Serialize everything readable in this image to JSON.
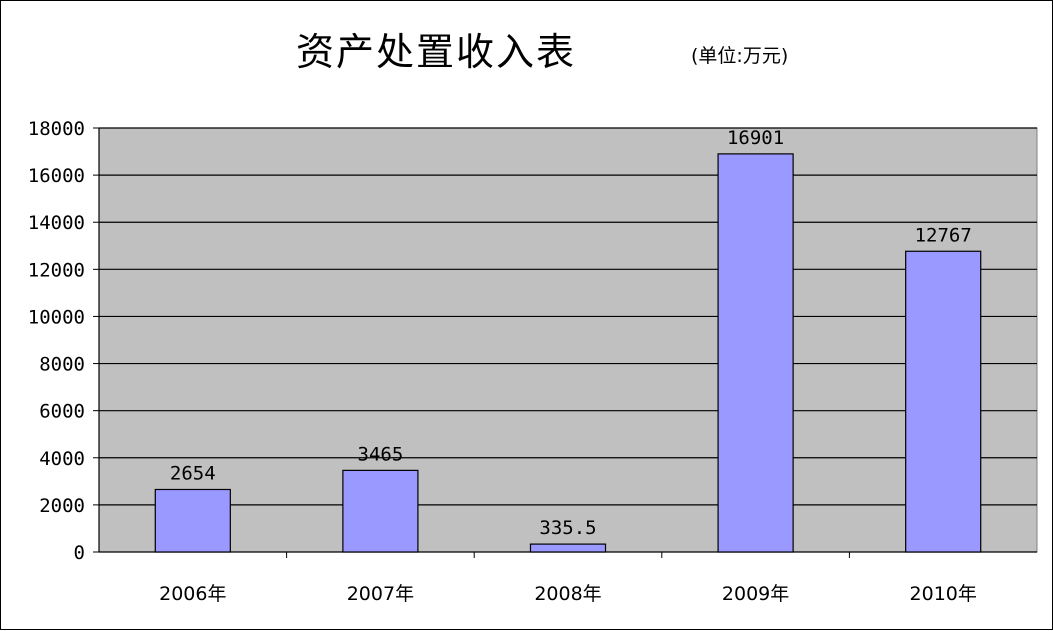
{
  "chart_data": {
    "type": "bar",
    "title": "资产处置收入表",
    "subtitle": "(单位:万元)",
    "categories": [
      "2006年",
      "2007年",
      "2008年",
      "2009年",
      "2010年"
    ],
    "values": [
      2654,
      3465,
      335.5,
      16901,
      12767
    ],
    "data_labels": [
      "2654",
      "3465",
      "335.5",
      "16901",
      "12767"
    ],
    "y_ticks": [
      "0",
      "2000",
      "4000",
      "6000",
      "8000",
      "10000",
      "12000",
      "14000",
      "16000",
      "18000"
    ],
    "ylim": [
      0,
      18000
    ],
    "grid": true,
    "legend": "none",
    "colors": {
      "bar_fill": "#9999ff",
      "plot_background": "#c0c0c0",
      "gridline": "#000000"
    }
  }
}
